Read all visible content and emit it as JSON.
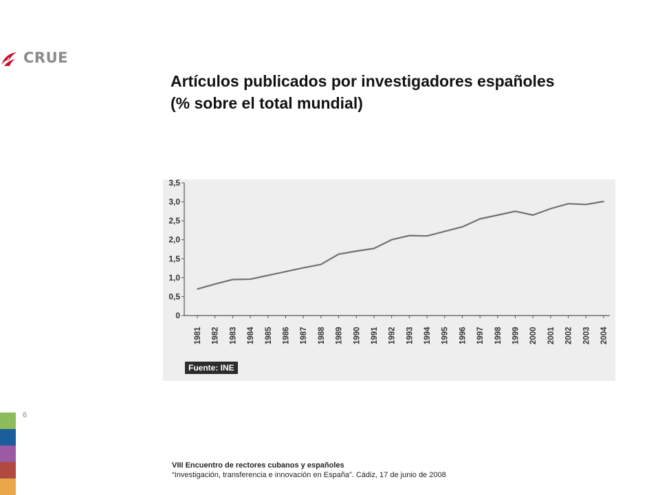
{
  "logo": {
    "text": "CRUE",
    "icon": "crue-wing-icon",
    "color": "#c8102e"
  },
  "title": {
    "line1": "Artículos publicados por investigadores españoles",
    "line2": "(% sobre el total mundial)"
  },
  "chart_data": {
    "type": "line",
    "title": "",
    "xlabel": "",
    "ylabel": "",
    "ylim": [
      0,
      3.5
    ],
    "yticks": [
      "0",
      "0,5",
      "1,0",
      "1,5",
      "2,0",
      "2,5",
      "3,0",
      "3,5"
    ],
    "categories": [
      "1981",
      "1982",
      "1983",
      "1984",
      "1985",
      "1986",
      "1987",
      "1988",
      "1989",
      "1990",
      "1991",
      "1992",
      "1993",
      "1994",
      "1995",
      "1996",
      "1997",
      "1998",
      "1999",
      "2000",
      "2001",
      "2002",
      "2003",
      "2004"
    ],
    "series": [
      {
        "name": "",
        "values": [
          0.7,
          0.83,
          0.95,
          0.96,
          1.06,
          1.16,
          1.26,
          1.35,
          1.62,
          1.7,
          1.77,
          2.0,
          2.11,
          2.1,
          2.22,
          2.34,
          2.55,
          2.65,
          2.75,
          2.65,
          2.82,
          2.95,
          2.93,
          3.01
        ]
      }
    ],
    "grid": false,
    "source": "Fuente: INE",
    "line_color": "#707070"
  },
  "page_number": "6",
  "footer": {
    "line1": "VIII Encuentro de rectores cubanos y españoles",
    "line2": "“Investigación, transferencia e innovación en España”. Cádiz,  17 de junio de 2008"
  },
  "color_bar": [
    "#8cbd5a",
    "#1a5f9c",
    "#9b5aa3",
    "#b04a40",
    "#e8a84a"
  ]
}
